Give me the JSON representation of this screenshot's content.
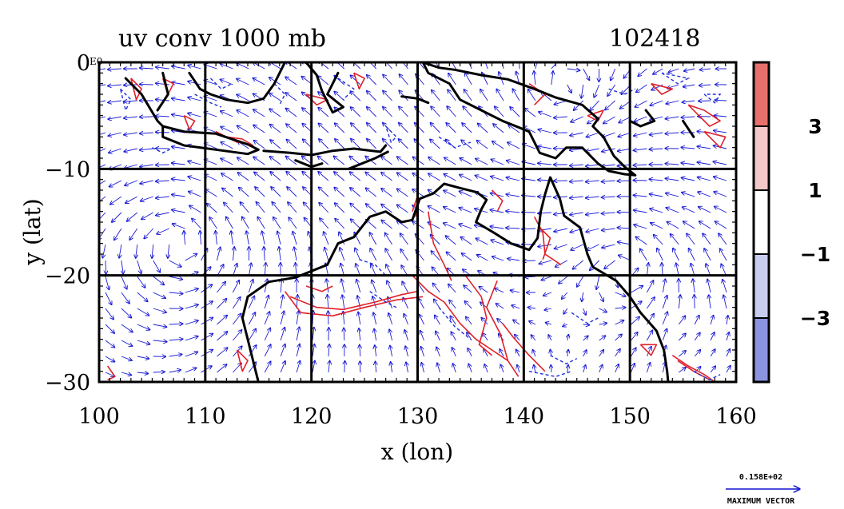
{
  "chart_data": {
    "type": "vector-contour-map",
    "title": "uv conv 1000 mb",
    "date_label": "102418",
    "xlabel": "x (lon)",
    "ylabel": "y (lat)",
    "xlim": [
      100,
      160
    ],
    "ylim": [
      -30,
      0
    ],
    "x_ticks": [
      100,
      110,
      120,
      130,
      140,
      150,
      160
    ],
    "y_ticks": [
      0,
      -10,
      -20,
      -30
    ],
    "x_tick_labels": [
      "100",
      "110",
      "120",
      "130",
      "140",
      "150",
      "160"
    ],
    "y_tick_labels": [
      "0",
      "−10",
      "−20",
      "−30"
    ],
    "y_top_suffix": "E0",
    "grid": true,
    "colorbar": {
      "levels": [
        -5,
        -3,
        -1,
        1,
        3,
        5
      ],
      "tick_labels": [
        "3",
        "1",
        "−1",
        "−3"
      ],
      "tick_values": [
        3,
        1,
        -1,
        -3
      ],
      "bands": [
        {
          "from": 3,
          "to": 5,
          "color": "#e8706c"
        },
        {
          "from": 1,
          "to": 3,
          "color": "#f5c8c8"
        },
        {
          "from": -1,
          "to": 1,
          "color": "#ffffff"
        },
        {
          "from": -3,
          "to": -1,
          "color": "#c8cdf0"
        },
        {
          "from": -5,
          "to": -3,
          "color": "#8c93e0"
        }
      ]
    },
    "vector_legend": {
      "value": "0.158E+02",
      "label": "MAXIMUM VECTOR"
    },
    "coastlines": [
      [
        [
          102.5,
          -1.5
        ],
        [
          104,
          -3
        ],
        [
          105.5,
          -5.5
        ],
        [
          106,
          -6
        ]
      ],
      [
        [
          106,
          -6
        ],
        [
          108,
          -6.5
        ],
        [
          111,
          -6.7
        ],
        [
          114,
          -7.7
        ],
        [
          115,
          -8.2
        ],
        [
          114,
          -8.6
        ],
        [
          111,
          -8.2
        ],
        [
          108,
          -7.8
        ],
        [
          106,
          -7
        ],
        [
          106,
          -6
        ]
      ],
      [
        [
          106,
          -1
        ],
        [
          106.5,
          -3
        ],
        [
          105.5,
          -4.5
        ]
      ],
      [
        [
          108.5,
          -1
        ],
        [
          109.5,
          -2.5
        ],
        [
          110.5,
          -3
        ],
        [
          112,
          -3.5
        ],
        [
          114,
          -3.8
        ],
        [
          115.5,
          -3.4
        ],
        [
          116.5,
          -2
        ],
        [
          117.5,
          0
        ]
      ],
      [
        [
          119.5,
          0
        ],
        [
          120.5,
          -1.2
        ],
        [
          121,
          -2.7
        ],
        [
          122,
          -4.7
        ],
        [
          123,
          -4.2
        ],
        [
          121.5,
          -3
        ],
        [
          122.5,
          -1
        ]
      ],
      [
        [
          115.5,
          -8.3
        ],
        [
          118,
          -8.5
        ],
        [
          120,
          -8.7
        ],
        [
          122,
          -8.3
        ],
        [
          124,
          -8.1
        ],
        [
          126.5,
          -8.4
        ],
        [
          127,
          -7.8
        ]
      ],
      [
        [
          118.5,
          -9.2
        ],
        [
          120,
          -9.8
        ],
        [
          121,
          -9.5
        ]
      ],
      [
        [
          123.5,
          -10
        ],
        [
          126,
          -9
        ],
        [
          127.2,
          -8.4
        ]
      ],
      [
        [
          128.5,
          -3.2
        ],
        [
          130,
          -3.4
        ],
        [
          131,
          -3.8
        ]
      ],
      [
        [
          130.5,
          0
        ],
        [
          131,
          -1
        ],
        [
          133,
          -2
        ],
        [
          134,
          -3.5
        ],
        [
          136,
          -4.5
        ],
        [
          138,
          -5.5
        ],
        [
          140.5,
          -6.5
        ],
        [
          141.5,
          -8.5
        ],
        [
          143,
          -9
        ],
        [
          144,
          -8
        ],
        [
          145.5,
          -8
        ],
        [
          147,
          -9.5
        ],
        [
          148,
          -10.2
        ],
        [
          149.5,
          -10.5
        ],
        [
          150.5,
          -10.6
        ],
        [
          149.5,
          -9.8
        ],
        [
          148.5,
          -8.8
        ],
        [
          147.5,
          -7
        ],
        [
          146.5,
          -6
        ],
        [
          147,
          -5.3
        ],
        [
          145.5,
          -4
        ],
        [
          143,
          -3.3
        ],
        [
          141,
          -2.5
        ],
        [
          138.5,
          -1.6
        ],
        [
          136,
          -1.2
        ],
        [
          133.5,
          -0.7
        ],
        [
          132,
          -0.5
        ],
        [
          130.5,
          0
        ]
      ],
      [
        [
          151.5,
          -4.5
        ],
        [
          152.3,
          -5.5
        ],
        [
          151,
          -6
        ],
        [
          150,
          -5.5
        ]
      ],
      [
        [
          155,
          -5.5
        ],
        [
          156,
          -7
        ]
      ],
      [
        [
          114,
          -22
        ],
        [
          113.5,
          -24
        ],
        [
          114,
          -26
        ],
        [
          114.5,
          -28
        ],
        [
          115,
          -30
        ]
      ],
      [
        [
          114,
          -22
        ],
        [
          116,
          -20.6
        ],
        [
          118.5,
          -20.2
        ],
        [
          121.5,
          -19
        ],
        [
          122.5,
          -17
        ],
        [
          124,
          -16.4
        ],
        [
          125.5,
          -14.5
        ],
        [
          127,
          -14
        ],
        [
          128.5,
          -15
        ],
        [
          129.5,
          -14.8
        ],
        [
          130.2,
          -12.8
        ],
        [
          131.5,
          -12.3
        ],
        [
          132.5,
          -11.4
        ],
        [
          134,
          -11.8
        ],
        [
          135.6,
          -12.2
        ],
        [
          136.5,
          -12.9
        ],
        [
          136,
          -13.8
        ],
        [
          135.5,
          -15
        ],
        [
          137.2,
          -16
        ],
        [
          138.8,
          -17
        ],
        [
          140.5,
          -17.6
        ],
        [
          141.3,
          -16.5
        ],
        [
          141.6,
          -14
        ],
        [
          142,
          -12.4
        ],
        [
          142.5,
          -10.8
        ],
        [
          143.4,
          -12.8
        ],
        [
          143.8,
          -14.4
        ],
        [
          145.3,
          -15.5
        ],
        [
          146,
          -18
        ],
        [
          146.5,
          -19.2
        ],
        [
          148.7,
          -20.5
        ],
        [
          150,
          -22
        ],
        [
          151,
          -23.5
        ],
        [
          152.5,
          -25.2
        ],
        [
          153.2,
          -27
        ],
        [
          153.5,
          -29
        ],
        [
          153.6,
          -30
        ]
      ]
    ],
    "pos_contours": [
      [
        [
          103,
          -1.5
        ],
        [
          104,
          -2.5
        ],
        [
          103.5,
          -3.5
        ],
        [
          103,
          -1.5
        ]
      ],
      [
        [
          106,
          -1.5
        ],
        [
          107,
          -2
        ],
        [
          106.5,
          -3
        ],
        [
          106,
          -1.5
        ]
      ],
      [
        [
          111,
          -6.5
        ],
        [
          112,
          -7
        ],
        [
          113.5,
          -7.2
        ],
        [
          114.5,
          -7.8
        ],
        [
          113,
          -7.5
        ],
        [
          111,
          -6.5
        ]
      ],
      [
        [
          119.5,
          -3
        ],
        [
          120.5,
          -4
        ],
        [
          121.5,
          -3.5
        ],
        [
          119.5,
          -3
        ]
      ],
      [
        [
          124,
          -1
        ],
        [
          125,
          -1.5
        ],
        [
          124.5,
          -2.5
        ],
        [
          124,
          -1
        ]
      ],
      [
        [
          129.5,
          -14
        ],
        [
          130,
          -12.5
        ],
        [
          129.8,
          -14.5
        ]
      ],
      [
        [
          131,
          -14
        ],
        [
          131.5,
          -17
        ],
        [
          132.5,
          -19
        ],
        [
          133.2,
          -20.5
        ]
      ],
      [
        [
          129.5,
          -20
        ],
        [
          131,
          -21.5
        ],
        [
          132.5,
          -22.5
        ],
        [
          134,
          -24.5
        ],
        [
          135.5,
          -26
        ],
        [
          137,
          -27
        ],
        [
          138.5,
          -28
        ],
        [
          139.5,
          -29.5
        ]
      ],
      [
        [
          118,
          -22
        ],
        [
          120.5,
          -23
        ],
        [
          123,
          -23.2
        ],
        [
          126,
          -22.5
        ],
        [
          128.5,
          -21.8
        ],
        [
          130,
          -21.5
        ]
      ],
      [
        [
          117.5,
          -21.5
        ],
        [
          119,
          -23.5
        ],
        [
          122,
          -23.8
        ],
        [
          125,
          -23
        ],
        [
          128,
          -22.3
        ],
        [
          130.5,
          -22
        ]
      ],
      [
        [
          119.5,
          -21
        ],
        [
          121,
          -21.5
        ],
        [
          122,
          -21
        ]
      ],
      [
        [
          134.5,
          -20
        ],
        [
          136,
          -22
        ],
        [
          136.5,
          -24
        ],
        [
          135.8,
          -26.5
        ],
        [
          137,
          -27.5
        ]
      ],
      [
        [
          137.5,
          -20.5
        ],
        [
          136.5,
          -23
        ],
        [
          137.8,
          -25.5
        ],
        [
          138.5,
          -28
        ]
      ],
      [
        [
          138,
          -24.5
        ],
        [
          139,
          -25.8
        ],
        [
          140.5,
          -27.5
        ],
        [
          142,
          -29
        ]
      ],
      [
        [
          141,
          -14.5
        ],
        [
          141.8,
          -16
        ],
        [
          142,
          -18
        ],
        [
          143.5,
          -19
        ]
      ],
      [
        [
          141.5,
          -15.5
        ],
        [
          142.5,
          -16.5
        ],
        [
          141.8,
          -18.5
        ]
      ],
      [
        [
          137,
          -12
        ],
        [
          138,
          -13
        ],
        [
          137.5,
          -14
        ]
      ],
      [
        [
          140.5,
          -2
        ],
        [
          142,
          -3
        ],
        [
          141,
          -4
        ]
      ],
      [
        [
          146,
          -5
        ],
        [
          147,
          -5.5
        ],
        [
          147.5,
          -4.5
        ],
        [
          146,
          -5
        ]
      ],
      [
        [
          152,
          -2
        ],
        [
          153,
          -3
        ],
        [
          154,
          -2.5
        ],
        [
          152,
          -2
        ]
      ],
      [
        [
          155.5,
          -4
        ],
        [
          156.5,
          -5
        ],
        [
          157.5,
          -6
        ],
        [
          158.5,
          -5.5
        ],
        [
          157,
          -4.5
        ],
        [
          155.5,
          -4
        ]
      ],
      [
        [
          157,
          -6.5
        ],
        [
          158.5,
          -8
        ],
        [
          159,
          -7
        ],
        [
          157,
          -6.5
        ]
      ],
      [
        [
          154,
          -27.5
        ],
        [
          155.5,
          -28.5
        ],
        [
          157,
          -29.3
        ],
        [
          158,
          -30
        ]
      ],
      [
        [
          154.5,
          -28
        ],
        [
          156,
          -29
        ],
        [
          157.5,
          -29.8
        ]
      ],
      [
        [
          151,
          -26.5
        ],
        [
          152,
          -27.5
        ],
        [
          152.5,
          -26.5
        ],
        [
          151,
          -26.5
        ]
      ],
      [
        [
          108,
          -5
        ],
        [
          109,
          -5.5
        ],
        [
          108.5,
          -6.3
        ],
        [
          108,
          -5
        ]
      ],
      [
        [
          113,
          -27
        ],
        [
          114,
          -28
        ],
        [
          113.5,
          -29
        ],
        [
          113,
          -27
        ]
      ],
      [
        [
          100.8,
          -28.5
        ],
        [
          101.5,
          -29.5
        ],
        [
          100.8,
          -29.8
        ]
      ]
    ],
    "neg_contours": [
      [
        [
          102,
          -2.5
        ],
        [
          103,
          -3.5
        ],
        [
          102.5,
          -4.5
        ],
        [
          102,
          -2.5
        ]
      ],
      [
        [
          109,
          -3
        ],
        [
          110.5,
          -3.8
        ],
        [
          111.5,
          -4.2
        ]
      ],
      [
        [
          116.5,
          -2
        ],
        [
          117.5,
          -3
        ],
        [
          117,
          -4
        ]
      ],
      [
        [
          122.5,
          -1.5
        ],
        [
          124,
          -2.5
        ],
        [
          123,
          -3.5
        ]
      ],
      [
        [
          127,
          -6
        ],
        [
          128,
          -7
        ],
        [
          127.5,
          -7.5
        ],
        [
          127,
          -6
        ]
      ],
      [
        [
          132,
          -7
        ],
        [
          133.5,
          -8
        ],
        [
          135,
          -7.5
        ]
      ],
      [
        [
          124.5,
          -18.5
        ],
        [
          126,
          -19
        ],
        [
          127,
          -20
        ]
      ],
      [
        [
          125.5,
          -21.5
        ],
        [
          127,
          -22.5
        ],
        [
          128,
          -23
        ]
      ],
      [
        [
          132,
          -23
        ],
        [
          133.5,
          -24.8
        ],
        [
          135,
          -26
        ]
      ],
      [
        [
          140.5,
          -29
        ],
        [
          143,
          -29.5
        ],
        [
          144.5,
          -29
        ]
      ],
      [
        [
          142.5,
          -27.5
        ],
        [
          144,
          -28.3
        ],
        [
          145,
          -27.8
        ]
      ],
      [
        [
          144.5,
          -23.5
        ],
        [
          146,
          -24.5
        ],
        [
          147,
          -24
        ]
      ],
      [
        [
          148,
          -2.5
        ],
        [
          149.5,
          -3
        ],
        [
          150.5,
          -2.5
        ]
      ],
      [
        [
          153,
          -1
        ],
        [
          154.5,
          -2
        ],
        [
          155.5,
          -1.5
        ],
        [
          153,
          -1
        ]
      ],
      [
        [
          157,
          -3
        ],
        [
          158,
          -3.8
        ],
        [
          158.5,
          -3
        ],
        [
          157,
          -3
        ]
      ],
      [
        [
          156,
          -29
        ],
        [
          157.5,
          -29.8
        ],
        [
          158.5,
          -29.3
        ]
      ],
      [
        [
          110.5,
          -1.5
        ],
        [
          111.5,
          -2.5
        ],
        [
          112.5,
          -2
        ]
      ],
      [
        [
          105,
          -8
        ],
        [
          106,
          -8.5
        ],
        [
          107,
          -8
        ]
      ]
    ]
  }
}
